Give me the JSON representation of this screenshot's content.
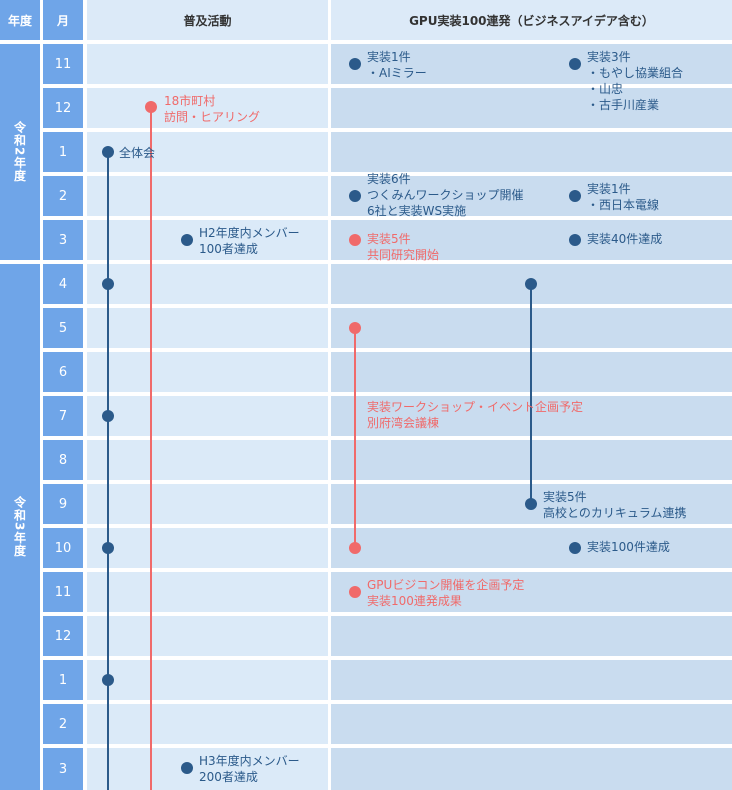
{
  "header": {
    "year": "年度",
    "month": "月",
    "fukyu": "普及活動",
    "gpu": "GPU実装100連発（ビジネスアイデア含む）"
  },
  "years": [
    "令和2年度",
    "令和3年度"
  ],
  "months": [
    "11",
    "12",
    "1",
    "2",
    "3",
    "4",
    "5",
    "6",
    "7",
    "8",
    "9",
    "10",
    "11",
    "12",
    "1",
    "2",
    "3"
  ],
  "events": {
    "f_zentai": "全体会",
    "f_18shi": "18市町村\n訪問・ヒアリング",
    "f_h2": "H2年度内メンバー\n100者達成",
    "f_h3": "H3年度内メンバー\n200者達成",
    "g_11a": "実装1件\n・AIミラー",
    "g_11b": "実装3件\n・もやし協業組合\n・山忠\n・古手川産業",
    "g_2a": "実装6件\nつくみんワークショップ開催\n6社と実装WS実施",
    "g_2b": "実装1件\n・西日本電線",
    "g_3a": "実装5件\n共同研究開始",
    "g_3b": "実装40件達成",
    "g_7": "実装ワークショップ・イベント企画予定\n別府湾会議棟",
    "g_9": "実装5件\n高校とのカリキュラム連携",
    "g_10": "実装100件達成",
    "g_11c": "GPUビジコン開催を企画予定\n実装100連発成果"
  },
  "colors": {
    "header_blue": "#6fa5e8",
    "row_light": "#dbeaf8",
    "row_gpu": "#c9dcef",
    "event_blue": "#2b5a8a",
    "event_red": "#f06a6a"
  }
}
